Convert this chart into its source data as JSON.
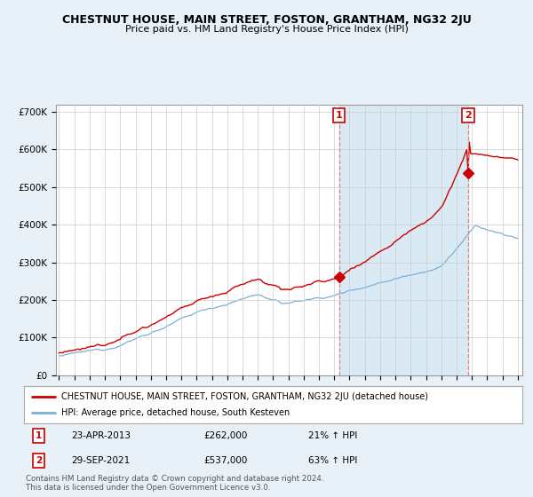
{
  "title": "CHESTNUT HOUSE, MAIN STREET, FOSTON, GRANTHAM, NG32 2JU",
  "subtitle": "Price paid vs. HM Land Registry's House Price Index (HPI)",
  "ylabel_ticks": [
    "£0",
    "£100K",
    "£200K",
    "£300K",
    "£400K",
    "£500K",
    "£600K",
    "£700K"
  ],
  "ytick_vals": [
    0,
    100000,
    200000,
    300000,
    400000,
    500000,
    600000,
    700000
  ],
  "ylim": [
    0,
    720000
  ],
  "xlim_start": 1994.8,
  "xlim_end": 2025.3,
  "transaction1": {
    "date": "23-APR-2013",
    "year": 2013.31,
    "price": 262000,
    "hpi_pct": "21%",
    "label": "1"
  },
  "transaction2": {
    "date": "29-SEP-2021",
    "year": 2021.75,
    "price": 537000,
    "hpi_pct": "63%",
    "label": "2"
  },
  "legend_line1": "CHESTNUT HOUSE, MAIN STREET, FOSTON, GRANTHAM, NG32 2JU (detached house)",
  "legend_line2": "HPI: Average price, detached house, South Kesteven",
  "footer1": "Contains HM Land Registry data © Crown copyright and database right 2024.",
  "footer2": "This data is licensed under the Open Government Licence v3.0.",
  "hpi_color": "#7bafd4",
  "price_color": "#cc0000",
  "bg_color": "#e8f0f8",
  "plot_bg": "#ffffff",
  "grid_color": "#cccccc",
  "shade_color": "#daeaf5"
}
